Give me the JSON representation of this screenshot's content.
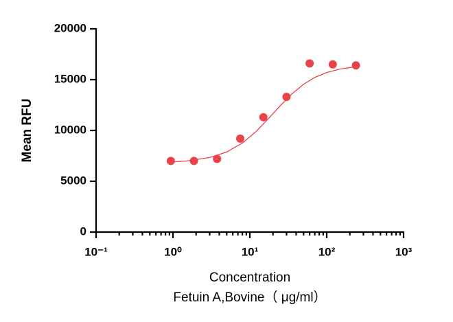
{
  "chart_data": {
    "type": "scatter",
    "xlabel": "Concentration",
    "xlabel2": "Fetuin A,Bovine（ μg/ml）",
    "ylabel": "Mean RFU",
    "xscale": "log",
    "xlim": [
      0.1,
      1000
    ],
    "xticks": [
      {
        "value": 0.1,
        "label": "10⁻¹"
      },
      {
        "value": 1,
        "label": "10⁰"
      },
      {
        "value": 10,
        "label": "10¹"
      },
      {
        "value": 100,
        "label": "10²"
      },
      {
        "value": 1000,
        "label": "10³"
      }
    ],
    "ylim": [
      0,
      20000
    ],
    "yticks": [
      0,
      5000,
      10000,
      15000,
      20000
    ],
    "series": [
      {
        "type": "scatter",
        "color": "#e8434a",
        "x": [
          0.9375,
          1.875,
          3.75,
          7.5,
          15,
          30,
          60,
          120,
          240
        ],
        "values": [
          7000,
          7000,
          7200,
          9200,
          11300,
          13300,
          16600,
          16500,
          16400
        ]
      },
      {
        "type": "line",
        "color": "#e8434a",
        "x": [
          0.9,
          1.5,
          3,
          5,
          8,
          12,
          18,
          25,
          35,
          50,
          70,
          100,
          150,
          240
        ],
        "values": [
          6890,
          6995,
          7333,
          7878,
          8760,
          9880,
          11270,
          12450,
          13570,
          14540,
          15220,
          15700,
          16050,
          16270
        ]
      }
    ]
  }
}
